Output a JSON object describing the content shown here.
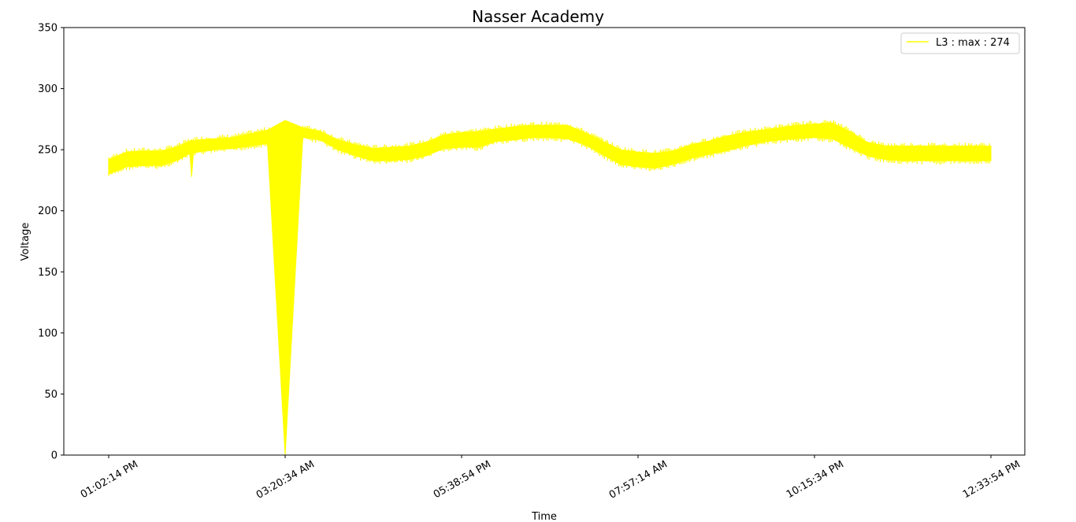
{
  "chart_data": {
    "type": "line",
    "title": "Nasser Academy",
    "xlabel": "Time",
    "ylabel": "Voltage",
    "ylim": [
      0,
      350
    ],
    "y_ticks": [
      0,
      50,
      100,
      150,
      200,
      250,
      300,
      350
    ],
    "x_tick_labels": [
      "01:02:14 PM",
      "03:20:34 AM",
      "05:38:54 PM",
      "07:57:14 AM",
      "10:15:34 PM",
      "12:33:54 PM"
    ],
    "legend_position": "top-right",
    "grid": false,
    "series": [
      {
        "name": "L3 : max : 274",
        "color": "#ffff00",
        "x": [
          0,
          0.5,
          1,
          1.5,
          2,
          2.3,
          2.35,
          2.4,
          2.5,
          3,
          3.5,
          4,
          4.5,
          5,
          5.5,
          6,
          6.5,
          7,
          7.5,
          8,
          8.5,
          9,
          9.5,
          10,
          10.5,
          11,
          11.5,
          12,
          12.5,
          13,
          13.5,
          14,
          14.5,
          15,
          15.5,
          16,
          16.5,
          17,
          17.5,
          18,
          18.5,
          19,
          19.5,
          20,
          20.5,
          21,
          21.5,
          22,
          22.5,
          23,
          23.5,
          24,
          24.5,
          25
        ],
        "low": [
          230,
          236,
          237,
          237,
          242,
          247,
          228,
          247,
          248,
          250,
          251,
          253,
          255,
          0,
          260,
          258,
          250,
          245,
          241,
          241,
          242,
          245,
          251,
          252,
          252,
          257,
          258,
          260,
          260,
          259,
          254,
          246,
          238,
          236,
          235,
          238,
          243,
          246,
          249,
          253,
          256,
          258,
          259,
          260,
          259,
          252,
          245,
          242,
          241,
          241,
          241,
          241,
          241,
          241
        ],
        "high": [
          242,
          248,
          249,
          249,
          253,
          257,
          258,
          257,
          258,
          259,
          260,
          263,
          266,
          274,
          268,
          265,
          258,
          254,
          251,
          252,
          253,
          256,
          262,
          264,
          265,
          267,
          269,
          270,
          270,
          270,
          264,
          257,
          250,
          248,
          247,
          249,
          254,
          257,
          261,
          264,
          266,
          268,
          270,
          271,
          272,
          265,
          256,
          253,
          253,
          253,
          253,
          253,
          253,
          253
        ],
        "x_ticks_at": [
          0,
          5,
          10,
          15,
          20,
          25
        ]
      }
    ]
  }
}
